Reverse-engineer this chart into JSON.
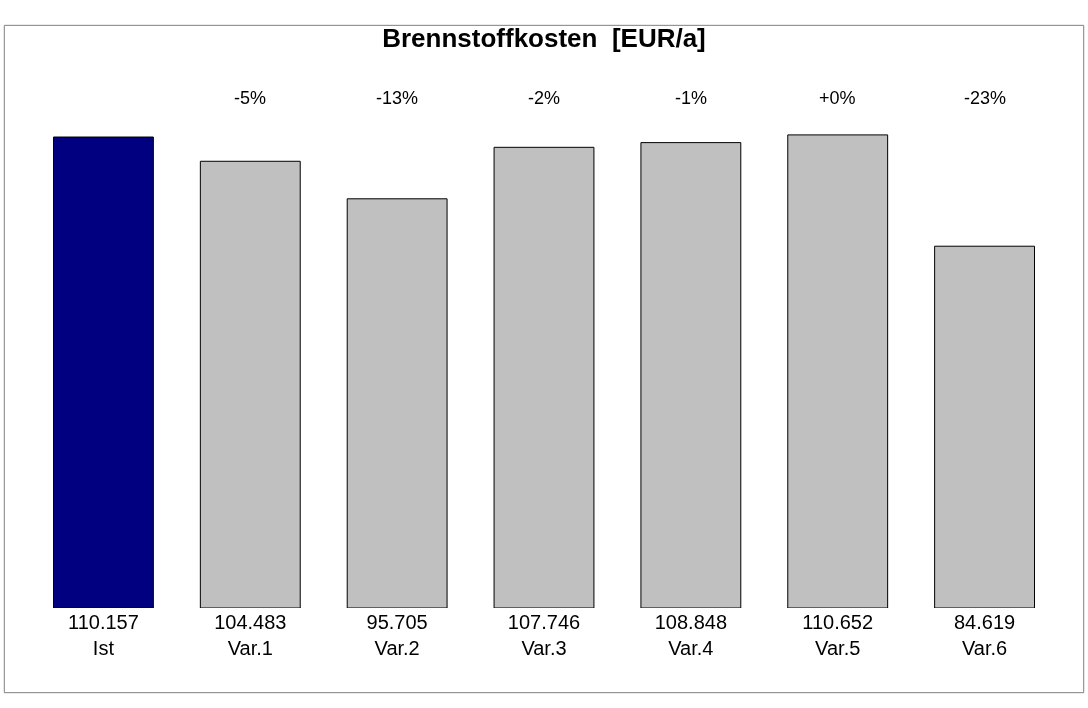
{
  "chart_data": {
    "type": "bar",
    "title": "Brennstoffkosten  [EUR/a]",
    "categories": [
      "Ist",
      "Var.1",
      "Var.2",
      "Var.3",
      "Var.4",
      "Var.5",
      "Var.6"
    ],
    "values": [
      110157,
      104483,
      95705,
      107746,
      108848,
      110652,
      84619
    ],
    "value_labels": [
      "110.157",
      "104.483",
      "95.705",
      "107.746",
      "108.848",
      "110.652",
      "84.619"
    ],
    "colors": [
      "#000080",
      "#c0c0c0",
      "#c0c0c0",
      "#c0c0c0",
      "#c0c0c0",
      "#c0c0c0",
      "#c0c0c0"
    ],
    "annotations": [
      "-5%",
      "-13%",
      "-2%",
      "-1%",
      "+0%",
      "-23%"
    ],
    "legend": false
  }
}
